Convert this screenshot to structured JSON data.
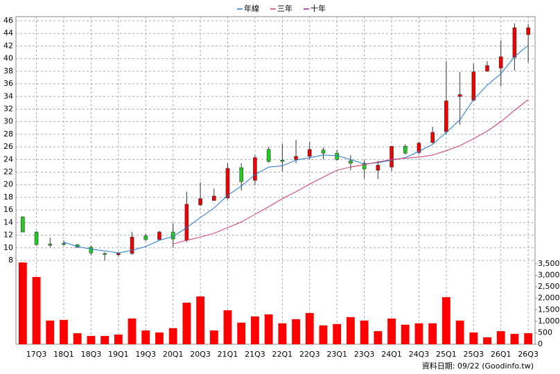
{
  "chart_data": {
    "type": "candlestick",
    "categories": [
      null,
      "17Q3",
      null,
      "18Q1",
      null,
      "18Q3",
      null,
      "19Q1",
      null,
      "19Q3",
      null,
      "20Q1",
      null,
      "20Q3",
      null,
      "21Q1",
      null,
      "21Q3",
      null,
      "22Q1",
      null,
      "22Q3",
      null,
      "23Q1",
      null,
      "23Q3",
      null,
      "24Q1",
      null,
      "24Q3",
      null,
      "25Q1",
      null,
      "25Q3",
      null,
      "26Q1",
      null,
      "26Q3"
    ],
    "open": [
      14.9,
      12.5,
      10.6,
      10.7,
      10.5,
      10.1,
      9.1,
      8.9,
      9.1,
      11.9,
      11.3,
      12.5,
      11.2,
      16.8,
      17.5,
      17.9,
      22.7,
      20.7,
      25.6,
      23.9,
      24.0,
      24.5,
      25.5,
      25.0,
      23.8,
      23.4,
      22.3,
      22.8,
      26.1,
      25.1,
      26.7,
      28.4,
      34.0,
      33.4,
      38.0,
      38.5,
      40.2,
      43.8
    ],
    "high": [
      15.0,
      12.6,
      11.6,
      11.2,
      10.6,
      10.3,
      9.3,
      9.3,
      12.5,
      12.2,
      12.7,
      13.9,
      18.9,
      20.4,
      19.4,
      23.4,
      23.4,
      24.7,
      26.0,
      26.5,
      27.1,
      26.8,
      25.9,
      25.5,
      24.7,
      23.9,
      23.8,
      26.1,
      26.4,
      26.8,
      29.2,
      39.6,
      37.9,
      39.2,
      39.6,
      42.9,
      45.6,
      45.5
    ],
    "low": [
      12.5,
      10.4,
      10.1,
      10.3,
      10.0,
      8.8,
      8.0,
      8.6,
      8.9,
      11.1,
      11.3,
      10.0,
      10.9,
      16.6,
      17.5,
      17.7,
      19.1,
      19.9,
      23.5,
      22.1,
      23.4,
      24.0,
      24.0,
      23.8,
      22.3,
      21.0,
      20.9,
      22.2,
      24.8,
      24.9,
      26.5,
      28.0,
      29.5,
      33.3,
      37.9,
      35.6,
      38.1,
      39.4
    ],
    "close": [
      12.5,
      10.5,
      10.4,
      10.6,
      10.1,
      9.2,
      9.0,
      9.1,
      11.7,
      11.3,
      12.5,
      11.4,
      16.9,
      17.8,
      18.2,
      22.6,
      20.5,
      24.3,
      23.7,
      23.7,
      24.5,
      25.6,
      25.0,
      24.0,
      23.4,
      22.5,
      23.1,
      26.1,
      25.0,
      26.6,
      28.3,
      33.3,
      34.3,
      37.9,
      38.9,
      40.3,
      44.9,
      44.9
    ],
    "up_color": "#ee0000",
    "down_color": "#22cc22",
    "series": [
      {
        "name": "年線",
        "color": "#1e78d2",
        "values": [
          null,
          null,
          null,
          10.9,
          10.2,
          9.8,
          9.5,
          9.2,
          9.6,
          10.2,
          11.2,
          11.8,
          13.2,
          14.8,
          16.3,
          18.3,
          19.8,
          21.6,
          22.8,
          23.0,
          23.9,
          24.3,
          24.7,
          24.6,
          24.0,
          23.3,
          23.5,
          23.9,
          24.3,
          25.3,
          26.4,
          28.3,
          30.3,
          33.5,
          35.8,
          37.6,
          40.3,
          42.1
        ]
      },
      {
        "name": "三年",
        "color": "#d6336a",
        "values": [
          null,
          null,
          null,
          null,
          null,
          null,
          null,
          null,
          null,
          null,
          null,
          10.6,
          11.2,
          11.7,
          12.3,
          13.2,
          14.1,
          15.3,
          16.5,
          17.8,
          18.9,
          20.1,
          21.2,
          22.3,
          22.8,
          23.2,
          23.6,
          24.0,
          24.2,
          24.4,
          24.7,
          25.4,
          26.2,
          27.3,
          28.5,
          30.0,
          31.8,
          33.5
        ]
      },
      {
        "name": "十年",
        "color": "#9a1a8a",
        "values": [
          null,
          null,
          null,
          null,
          null,
          null,
          null,
          null,
          null,
          null,
          null,
          null,
          null,
          null,
          null,
          null,
          null,
          null,
          null,
          null,
          null,
          null,
          null,
          null,
          null,
          null,
          null,
          null,
          null,
          null,
          null,
          null,
          null,
          null,
          null,
          null,
          null,
          null
        ]
      }
    ],
    "volume": {
      "color": "#ff0000",
      "axis": "y2",
      "values": [
        3560,
        2930,
        1030,
        1060,
        480,
        360,
        360,
        420,
        1120,
        600,
        510,
        700,
        1810,
        2080,
        600,
        1480,
        940,
        1210,
        1300,
        910,
        1090,
        1360,
        820,
        880,
        1180,
        1030,
        570,
        1120,
        850,
        910,
        910,
        2050,
        1030,
        510,
        300,
        570,
        450,
        480
      ]
    },
    "ylim": [
      8,
      46
    ],
    "yticks": [
      8,
      10,
      12,
      14,
      16,
      18,
      20,
      22,
      24,
      26,
      28,
      30,
      32,
      34,
      36,
      38,
      40,
      42,
      44,
      46
    ],
    "y2lim": [
      0,
      3500
    ],
    "y2ticks": [
      0,
      {
        "value": 500,
        "label": "500"
      },
      {
        "value": 1000,
        "label": "1,000"
      },
      {
        "value": 1500,
        "label": "1,500"
      },
      {
        "value": 2000,
        "label": "2,000"
      },
      {
        "value": 2500,
        "label": "2,500"
      },
      {
        "value": 3000,
        "label": "3,000"
      },
      {
        "value": 3500,
        "label": "3,500"
      }
    ],
    "grid": true,
    "footnote": "資料日期: 09/22 (Goodinfo.tw)"
  }
}
